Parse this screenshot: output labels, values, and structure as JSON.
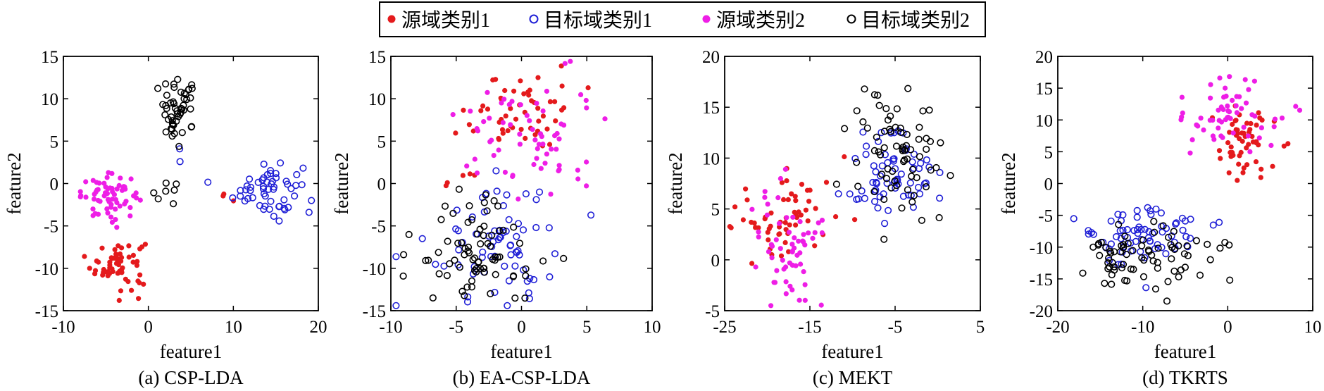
{
  "legend": {
    "items": [
      {
        "label": "源域类别1",
        "color": "#e41a1c",
        "marker": "filled-circle"
      },
      {
        "label": "目标域类别1",
        "color": "#1f1fd6",
        "marker": "open-circle"
      },
      {
        "label": "源域类别2",
        "color": "#ee1ee6",
        "marker": "filled-circle"
      },
      {
        "label": "目标域类别2",
        "color": "#000000",
        "marker": "open-circle"
      }
    ],
    "placement": "top-center"
  },
  "chart_data": [
    {
      "type": "scatter",
      "caption": "(a) CSP-LDA",
      "xlabel": "feature1",
      "ylabel": "feature2",
      "xlim": [
        -10,
        20
      ],
      "ylim": [
        -15,
        15
      ],
      "xticks": [
        -10,
        0,
        10,
        20
      ],
      "yticks": [
        -15,
        -10,
        -5,
        0,
        5,
        10,
        15
      ],
      "grid": false,
      "clusters": [
        {
          "series": "源域类别1",
          "cx": -3.5,
          "cy": -9.5,
          "sx": 1.6,
          "sy": 1.5,
          "n": 60
        },
        {
          "series": "源域类别1",
          "cx": 9,
          "cy": -1.5,
          "sx": 0.6,
          "sy": 1.0,
          "n": 3
        },
        {
          "series": "目标域类别1",
          "cx": 14,
          "cy": -0.5,
          "sx": 2.0,
          "sy": 1.8,
          "n": 55
        },
        {
          "series": "目标域类别1",
          "cx": 3.5,
          "cy": 3.0,
          "sx": 0.4,
          "sy": 0.5,
          "n": 2
        },
        {
          "series": "源域类别2",
          "cx": -4.5,
          "cy": -1.5,
          "sx": 1.7,
          "sy": 1.2,
          "n": 65
        },
        {
          "series": "目标域类别2",
          "cx": 3.5,
          "cy": 8.5,
          "sx": 1.3,
          "sy": 1.8,
          "n": 50
        },
        {
          "series": "目标域类别2",
          "cx": 2.0,
          "cy": -1.0,
          "sx": 0.8,
          "sy": 1.2,
          "n": 7
        }
      ]
    },
    {
      "type": "scatter",
      "caption": "(b) EA-CSP-LDA",
      "xlabel": "feature1",
      "ylabel": "feature2",
      "xlim": [
        -10,
        10
      ],
      "ylim": [
        -15,
        15
      ],
      "xticks": [
        -10,
        -5,
        0,
        5,
        10
      ],
      "yticks": [
        -15,
        -10,
        -5,
        0,
        5,
        10,
        15
      ],
      "grid": false,
      "clusters": [
        {
          "series": "源域类别1",
          "cx": 0.0,
          "cy": 8.5,
          "sx": 2.0,
          "sy": 2.5,
          "n": 55
        },
        {
          "series": "源域类别1",
          "cx": -5.5,
          "cy": 0.5,
          "sx": 0.8,
          "sy": 1.5,
          "n": 4
        },
        {
          "series": "目标域类别1",
          "cx": -2.0,
          "cy": -7.0,
          "sx": 2.6,
          "sy": 4.0,
          "n": 70
        },
        {
          "series": "源域类别2",
          "cx": 0.5,
          "cy": 5.5,
          "sx": 2.6,
          "sy": 3.5,
          "n": 65
        },
        {
          "series": "目标域类别2",
          "cx": -3.5,
          "cy": -8.0,
          "sx": 2.5,
          "sy": 3.5,
          "n": 75
        }
      ]
    },
    {
      "type": "scatter",
      "caption": "(c) MEKT",
      "xlabel": "feature1",
      "ylabel": "feature2",
      "xlim": [
        -25,
        5
      ],
      "ylim": [
        -5,
        20
      ],
      "xticks": [
        -25,
        -15,
        -5,
        5
      ],
      "yticks": [
        -5,
        0,
        5,
        10,
        15,
        20
      ],
      "grid": false,
      "clusters": [
        {
          "series": "源域类别1",
          "cx": -17.5,
          "cy": 4.5,
          "sx": 3.5,
          "sy": 2.2,
          "n": 60
        },
        {
          "series": "目标域类别1",
          "cx": -5.5,
          "cy": 8.0,
          "sx": 2.6,
          "sy": 2.6,
          "n": 65
        },
        {
          "series": "源域类别2",
          "cx": -17.5,
          "cy": 1.0,
          "sx": 2.0,
          "sy": 3.0,
          "n": 60
        },
        {
          "series": "目标域类别2",
          "cx": -4.5,
          "cy": 10.0,
          "sx": 2.8,
          "sy": 3.5,
          "n": 70
        }
      ]
    },
    {
      "type": "scatter",
      "caption": "(d) TKRTS",
      "xlabel": "feature1",
      "ylabel": "feature2",
      "xlim": [
        -20,
        10
      ],
      "ylim": [
        -20,
        20
      ],
      "xticks": [
        -20,
        -10,
        0,
        10
      ],
      "yticks": [
        -20,
        -15,
        -10,
        -5,
        0,
        5,
        10,
        15,
        20
      ],
      "grid": false,
      "clusters": [
        {
          "series": "源域类别1",
          "cx": 1.5,
          "cy": 6.0,
          "sx": 2.0,
          "sy": 3.0,
          "n": 55
        },
        {
          "series": "目标域类别1",
          "cx": -10.0,
          "cy": -8.0,
          "sx": 3.5,
          "sy": 2.5,
          "n": 70
        },
        {
          "series": "源域类别2",
          "cx": 0.5,
          "cy": 10.5,
          "sx": 3.0,
          "sy": 2.5,
          "n": 60
        },
        {
          "series": "目标域类别2",
          "cx": -9.5,
          "cy": -11.5,
          "sx": 4.0,
          "sy": 3.0,
          "n": 75
        }
      ]
    }
  ]
}
